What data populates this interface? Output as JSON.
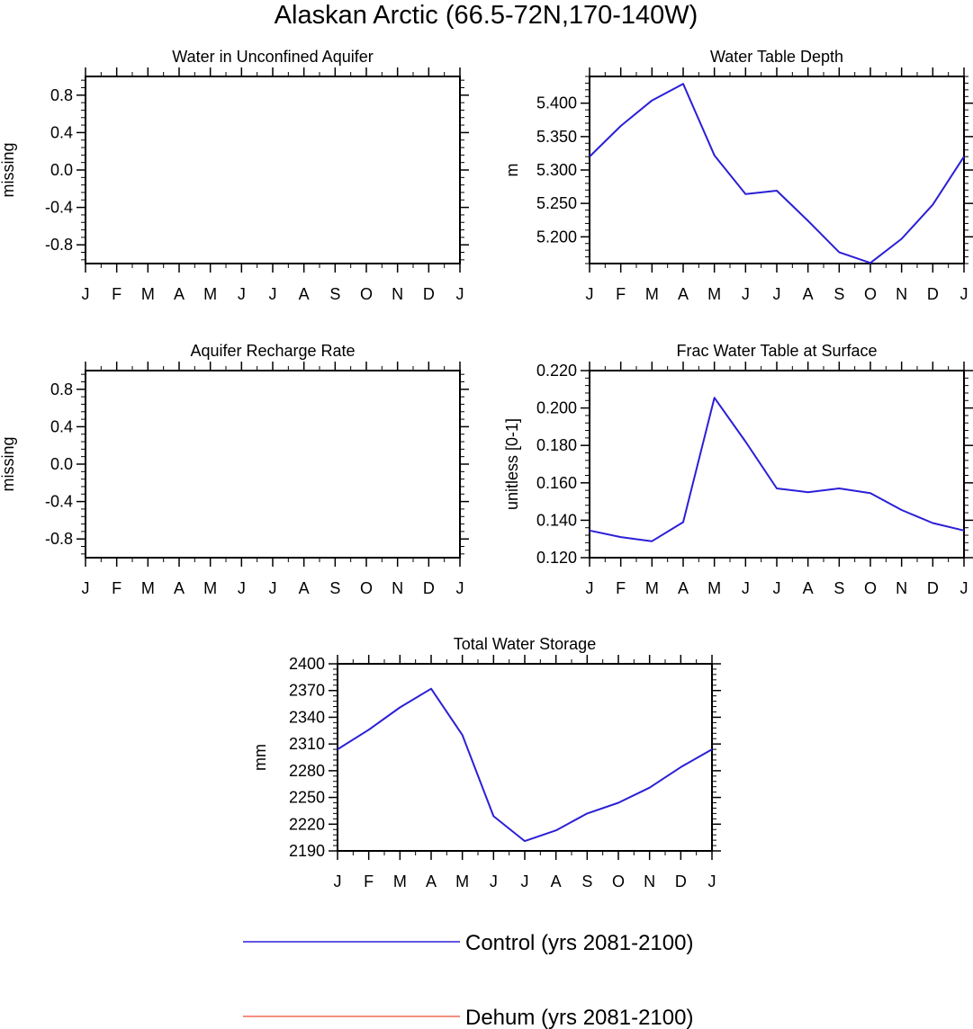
{
  "figure": {
    "title": "Alaskan Arctic (66.5-72N,170-140W)"
  },
  "colors": {
    "control": "#2b1fd6",
    "dehum": "#f06a55",
    "axis": "#000000"
  },
  "legend": {
    "entries": [
      {
        "label": "Control (yrs 2081-2100)",
        "color": "#2b1fd6"
      },
      {
        "label": "Dehum (yrs 2081-2100)",
        "color": "#f06a55"
      }
    ]
  },
  "chart_data": [
    {
      "type": "line",
      "title": "Water in Unconfined Aquifer",
      "ylabel": "missing",
      "xlabel": "",
      "categories": [
        "J",
        "F",
        "M",
        "A",
        "M",
        "J",
        "J",
        "A",
        "S",
        "O",
        "N",
        "D",
        "J"
      ],
      "ylim": [
        -1.0,
        1.0
      ],
      "yticks": [
        -0.8,
        -0.4,
        0.0,
        0.4,
        0.8
      ],
      "ytick_labels": [
        "-0.8",
        "-0.4",
        "0.0",
        "0.4",
        "0.8"
      ],
      "series": []
    },
    {
      "type": "line",
      "title": "Water Table Depth",
      "ylabel": "m",
      "xlabel": "",
      "categories": [
        "J",
        "F",
        "M",
        "A",
        "M",
        "J",
        "J",
        "A",
        "S",
        "O",
        "N",
        "D",
        "J"
      ],
      "ylim": [
        5.16,
        5.44
      ],
      "yticks": [
        5.2,
        5.25,
        5.3,
        5.35,
        5.4
      ],
      "ytick_labels": [
        "5.200",
        "5.250",
        "5.300",
        "5.350",
        "5.400"
      ],
      "series": [
        {
          "key": "control",
          "values": [
            5.32,
            5.366,
            5.404,
            5.429,
            5.322,
            5.264,
            5.269,
            5.224,
            5.177,
            5.161,
            5.197,
            5.248,
            5.32
          ]
        }
      ]
    },
    {
      "type": "line",
      "title": "Aquifer Recharge Rate",
      "ylabel": "missing",
      "xlabel": "",
      "categories": [
        "J",
        "F",
        "M",
        "A",
        "M",
        "J",
        "J",
        "A",
        "S",
        "O",
        "N",
        "D",
        "J"
      ],
      "ylim": [
        -1.0,
        1.0
      ],
      "yticks": [
        -0.8,
        -0.4,
        0.0,
        0.4,
        0.8
      ],
      "ytick_labels": [
        "-0.8",
        "-0.4",
        "0.0",
        "0.4",
        "0.8"
      ],
      "series": []
    },
    {
      "type": "line",
      "title": "Frac Water Table at Surface",
      "ylabel": "unitless [0-1]",
      "xlabel": "",
      "categories": [
        "J",
        "F",
        "M",
        "A",
        "M",
        "J",
        "J",
        "A",
        "S",
        "O",
        "N",
        "D",
        "J"
      ],
      "ylim": [
        0.12,
        0.22
      ],
      "yticks": [
        0.12,
        0.14,
        0.16,
        0.18,
        0.2,
        0.22
      ],
      "ytick_labels": [
        "0.120",
        "0.140",
        "0.160",
        "0.180",
        "0.200",
        "0.220"
      ],
      "series": [
        {
          "key": "control",
          "values": [
            0.1345,
            0.131,
            0.1288,
            0.139,
            0.2055,
            0.182,
            0.157,
            0.155,
            0.157,
            0.1545,
            0.1455,
            0.1385,
            0.1345
          ]
        }
      ]
    },
    {
      "type": "line",
      "title": "Total Water Storage",
      "ylabel": "mm",
      "xlabel": "",
      "categories": [
        "J",
        "F",
        "M",
        "A",
        "M",
        "J",
        "J",
        "A",
        "S",
        "O",
        "N",
        "D",
        "J"
      ],
      "ylim": [
        2190,
        2400
      ],
      "yticks": [
        2190,
        2220,
        2250,
        2280,
        2310,
        2340,
        2370,
        2400
      ],
      "ytick_labels": [
        "2190",
        "2220",
        "2250",
        "2280",
        "2310",
        "2340",
        "2370",
        "2400"
      ],
      "series": [
        {
          "key": "control",
          "values": [
            2304,
            2326,
            2351,
            2372,
            2320,
            2229,
            2201,
            2213,
            2232,
            2244,
            2261,
            2284,
            2304
          ]
        }
      ]
    }
  ]
}
